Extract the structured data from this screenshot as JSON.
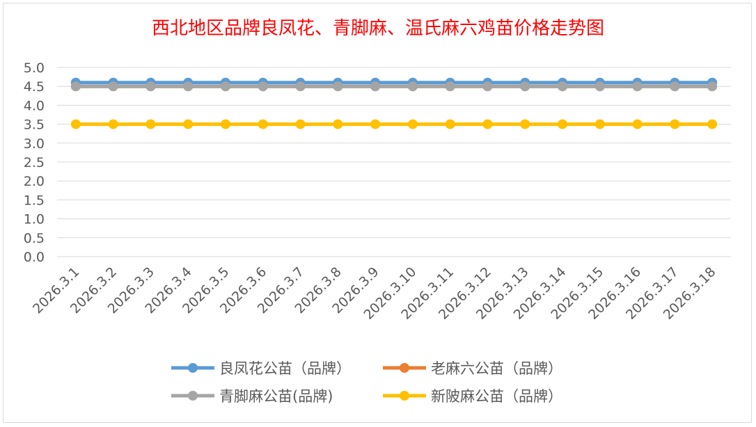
{
  "chart_data": {
    "type": "line",
    "title": "西北地区品牌良凤花、青脚麻、温氏麻六鸡苗价格走势图",
    "categories": [
      "2026.3.1",
      "2026.3.2",
      "2026.3.3",
      "2026.3.4",
      "2026.3.5",
      "2026.3.6",
      "2026.3.7",
      "2026.3.8",
      "2026.3.9",
      "2026.3.10",
      "2026.3.11",
      "2026.3.12",
      "2026.3.13",
      "2026.3.14",
      "2026.3.15",
      "2026.3.16",
      "2026.3.17",
      "2026.3.18"
    ],
    "y_ticks": [
      "0.0",
      "0.5",
      "1.0",
      "1.5",
      "2.0",
      "2.5",
      "3.0",
      "3.5",
      "4.0",
      "4.5",
      "5.0"
    ],
    "ylim": [
      0,
      5
    ],
    "grid": true,
    "legend_position": "bottom",
    "series": [
      {
        "name": "良凤花公苗（品牌）",
        "color": "#5b9bd5",
        "values": [
          4.6,
          4.6,
          4.6,
          4.6,
          4.6,
          4.6,
          4.6,
          4.6,
          4.6,
          4.6,
          4.6,
          4.6,
          4.6,
          4.6,
          4.6,
          4.6,
          4.6,
          4.6
        ]
      },
      {
        "name": "老麻六公苗（品牌）",
        "color": "#ed7d31",
        "values": [
          4.5,
          4.5,
          4.5,
          4.5,
          4.5,
          4.5,
          4.5,
          4.5,
          4.5,
          4.5,
          4.5,
          4.5,
          4.5,
          4.5,
          4.5,
          4.5,
          4.5,
          4.5
        ]
      },
      {
        "name": "青脚麻公苗(品牌)",
        "color": "#a5a5a5",
        "values": [
          4.5,
          4.5,
          4.5,
          4.5,
          4.5,
          4.5,
          4.5,
          4.5,
          4.5,
          4.5,
          4.5,
          4.5,
          4.5,
          4.5,
          4.5,
          4.5,
          4.5,
          4.5
        ]
      },
      {
        "name": "新陂麻公苗（品牌）",
        "color": "#ffc000",
        "values": [
          3.5,
          3.5,
          3.5,
          3.5,
          3.5,
          3.5,
          3.5,
          3.5,
          3.5,
          3.5,
          3.5,
          3.5,
          3.5,
          3.5,
          3.5,
          3.5,
          3.5,
          3.5
        ]
      }
    ]
  }
}
